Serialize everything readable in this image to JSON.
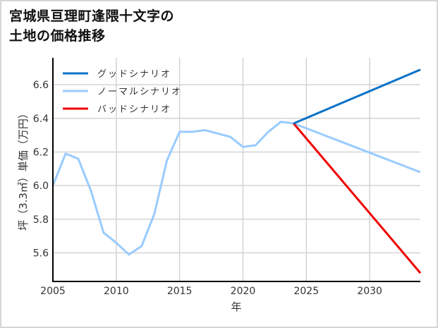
{
  "title_lines": [
    "宮城県亘理町逢隈十文字の",
    "土地の価格推移"
  ],
  "colors": {
    "good": "#0a72c6",
    "normal": "#99cbff",
    "bad": "#f00000",
    "grid": "#d4d4d4",
    "axis": "#000000"
  },
  "chart_data": {
    "type": "line",
    "title": "宮城県亘理町逢隈十文字の土地の価格推移",
    "xlabel": "年",
    "ylabel": "坪（3.3㎡）単価（万円）",
    "xlim": [
      2005,
      2034
    ],
    "ylim": [
      5.43,
      6.76
    ],
    "x_ticks": [
      2005,
      2010,
      2015,
      2020,
      2025,
      2030
    ],
    "y_ticks": [
      5.6,
      5.8,
      6.0,
      6.2,
      6.4,
      6.6
    ],
    "y_tick_labels": [
      "5.6",
      "5.8",
      "6.0",
      "6.2",
      "6.4",
      "6.6"
    ],
    "grid": true,
    "legend_position": "upper left",
    "series": [
      {
        "name": "グッドシナリオ",
        "key": "good",
        "x": [
          2024,
          2034
        ],
        "values": [
          6.37,
          6.69
        ]
      },
      {
        "name": "ノーマルシナリオ",
        "key": "normal",
        "x": [
          2005,
          2006,
          2007,
          2008,
          2009,
          2010,
          2011,
          2012,
          2013,
          2014,
          2015,
          2016,
          2017,
          2018,
          2019,
          2020,
          2021,
          2022,
          2023,
          2024,
          2034
        ],
        "values": [
          6.0,
          6.19,
          6.16,
          5.97,
          5.72,
          5.66,
          5.59,
          5.64,
          5.83,
          6.15,
          6.32,
          6.32,
          6.33,
          6.31,
          6.29,
          6.23,
          6.24,
          6.32,
          6.38,
          6.37,
          6.08
        ]
      },
      {
        "name": "バッドシナリオ",
        "key": "bad",
        "x": [
          2024,
          2034
        ],
        "values": [
          6.37,
          5.48
        ]
      }
    ]
  }
}
